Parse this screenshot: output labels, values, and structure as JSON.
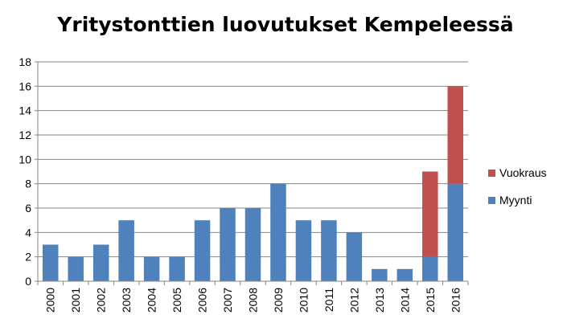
{
  "chart_data": {
    "type": "bar",
    "stacked": true,
    "title": "Yritystonttien luovutukset Kempeleessä",
    "xlabel": "",
    "ylabel": "",
    "categories": [
      "2000",
      "2001",
      "2002",
      "2003",
      "2004",
      "2005",
      "2006",
      "2007",
      "2008",
      "2009",
      "2010",
      "2011",
      "2012",
      "2013",
      "2014",
      "2015",
      "2016"
    ],
    "series": [
      {
        "name": "Myynti",
        "color": "#4F81BD",
        "values": [
          3,
          2,
          3,
          5,
          2,
          2,
          5,
          6,
          6,
          8,
          5,
          5,
          4,
          1,
          1,
          2,
          8
        ]
      },
      {
        "name": "Vuokraus",
        "color": "#C0504D",
        "values": [
          0,
          0,
          0,
          0,
          0,
          0,
          0,
          0,
          0,
          0,
          0,
          0,
          0,
          0,
          0,
          7,
          8
        ]
      }
    ],
    "ylim": [
      0,
      18
    ],
    "yticks": [
      "0",
      "2",
      "4",
      "6",
      "8",
      "10",
      "12",
      "14",
      "16",
      "18"
    ],
    "grid": true,
    "legend_position": "right",
    "legend_order": [
      "Vuokraus",
      "Myynti"
    ]
  }
}
